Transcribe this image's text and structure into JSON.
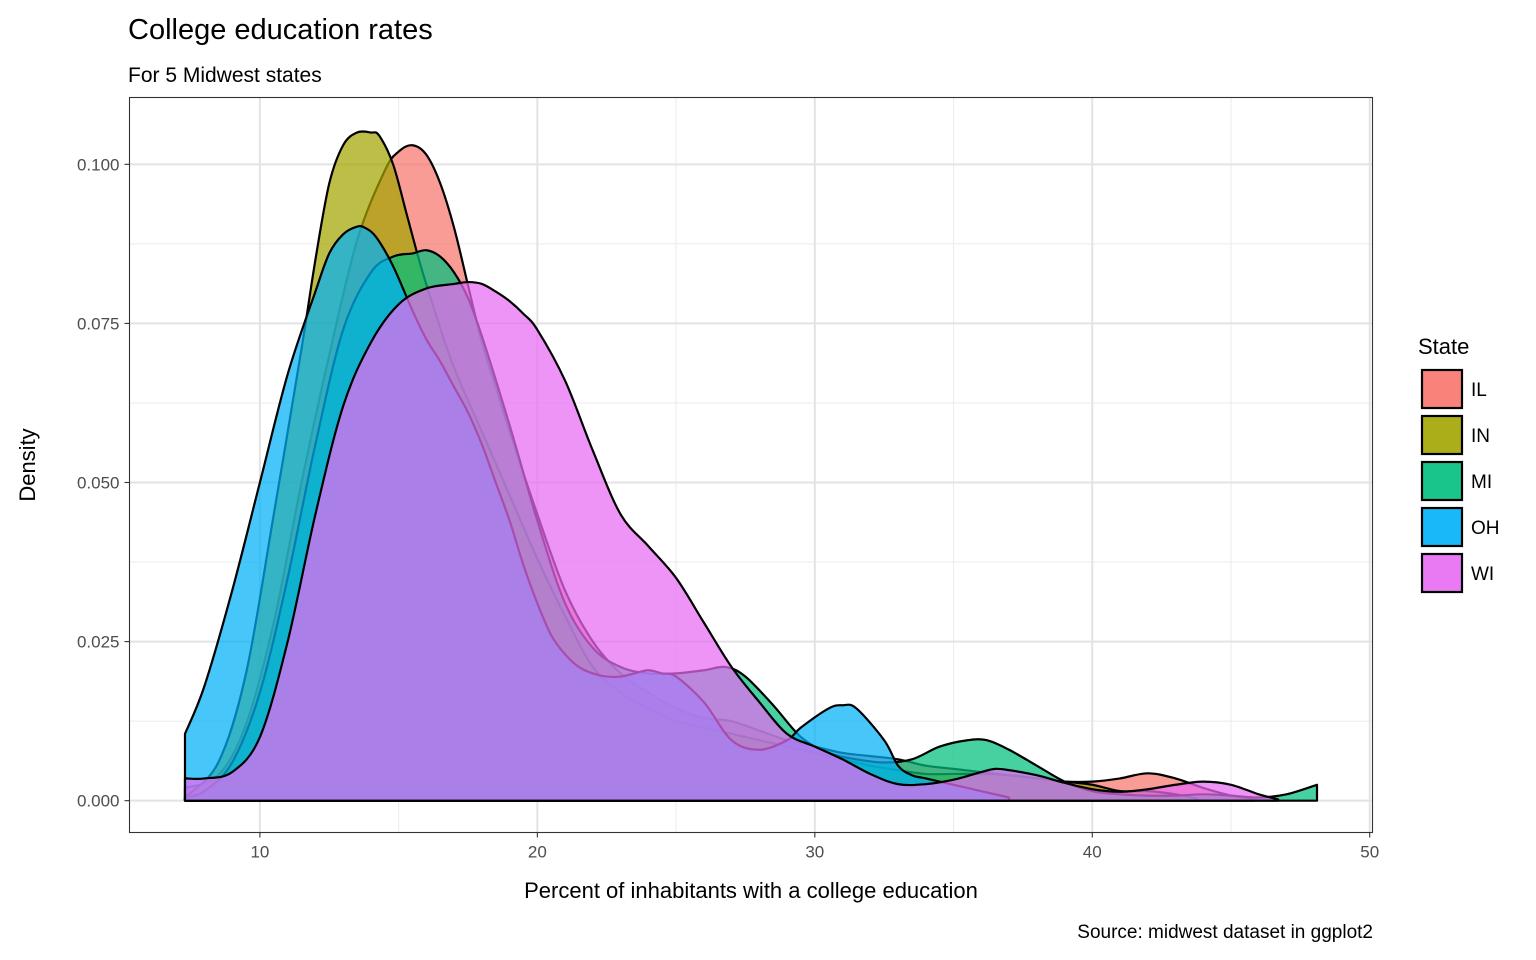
{
  "chart_data": {
    "type": "area",
    "title": "College education rates",
    "subtitle": "For 5 Midwest states",
    "xlabel": "Percent of inhabitants with a college education",
    "ylabel": "Density",
    "caption": "Source: midwest dataset in ggplot2",
    "xlim": [
      5.3,
      50.1
    ],
    "ylim": [
      -0.005,
      0.1105
    ],
    "xticks": [
      10,
      20,
      30,
      40,
      50
    ],
    "xtick_labels": [
      "10",
      "20",
      "30",
      "40",
      "50"
    ],
    "yticks": [
      0,
      0.025,
      0.05,
      0.075,
      0.1
    ],
    "ytick_labels": [
      "0.000",
      "0.025",
      "0.050",
      "0.075",
      "0.100"
    ],
    "grid": true,
    "legend": {
      "title": "State",
      "position": "right"
    },
    "series": [
      {
        "name": "IL",
        "color": "#F8766D",
        "x": [
          7.3,
          8.5,
          9.5,
          10.5,
          11.5,
          12.5,
          13.5,
          14.5,
          15.0,
          15.5,
          16.0,
          16.5,
          17.0,
          17.5,
          18.0,
          18.5,
          19.0,
          20.0,
          21.0,
          22.0,
          23.0,
          24.0,
          25.0,
          26.0,
          27.0,
          28.0,
          29.0,
          30.0,
          31.0,
          32.0,
          33.0,
          34.0,
          35.0,
          36.0,
          37.0,
          38.0,
          39.0,
          40.0,
          41.0,
          42.0,
          43.0,
          44.0,
          45.0,
          45.8
        ],
        "y": [
          0.002,
          0.004,
          0.012,
          0.028,
          0.05,
          0.07,
          0.088,
          0.099,
          0.102,
          0.103,
          0.1015,
          0.097,
          0.09,
          0.081,
          0.072,
          0.065,
          0.058,
          0.045,
          0.033,
          0.025,
          0.02,
          0.017,
          0.0145,
          0.013,
          0.0125,
          0.011,
          0.0095,
          0.0085,
          0.0075,
          0.007,
          0.0065,
          0.0055,
          0.005,
          0.0045,
          0.004,
          0.0035,
          0.003,
          0.003,
          0.0035,
          0.0043,
          0.0035,
          0.002,
          0.0008,
          0.0003
        ]
      },
      {
        "name": "IN",
        "color": "#A3A500",
        "x": [
          7.3,
          8.5,
          9.5,
          10.5,
          11.5,
          12.0,
          12.5,
          13.0,
          13.5,
          14.0,
          14.3,
          14.8,
          15.3,
          15.8,
          16.3,
          17.0,
          18.0,
          19.0,
          20.0,
          21.0,
          22.0,
          23.0,
          24.0,
          25.0,
          26.0,
          27.0,
          28.0,
          29.0,
          30.0,
          31.0,
          32.0,
          33.0,
          34.0,
          35.0,
          36.0,
          37.0,
          38.0,
          39.0,
          40.0,
          41.0,
          42.0,
          43.0,
          43.8
        ],
        "y": [
          0.0005,
          0.006,
          0.02,
          0.045,
          0.071,
          0.085,
          0.097,
          0.103,
          0.105,
          0.105,
          0.1045,
          0.1,
          0.092,
          0.084,
          0.077,
          0.068,
          0.058,
          0.048,
          0.038,
          0.029,
          0.021,
          0.017,
          0.0145,
          0.0125,
          0.0115,
          0.0105,
          0.0095,
          0.0085,
          0.0075,
          0.0065,
          0.0055,
          0.0048,
          0.0042,
          0.0042,
          0.0042,
          0.004,
          0.0035,
          0.003,
          0.0025,
          0.0015,
          0.0015,
          0.001,
          0.0003
        ]
      },
      {
        "name": "MI",
        "color": "#00BF7D",
        "x": [
          7.3,
          8.0,
          9.0,
          10.0,
          11.0,
          12.0,
          13.0,
          14.0,
          14.8,
          15.5,
          16.0,
          16.5,
          17.0,
          17.5,
          18.0,
          19.0,
          20.0,
          21.0,
          22.0,
          23.0,
          24.0,
          25.0,
          26.0,
          26.8,
          27.5,
          28.5,
          29.5,
          30.5,
          31.5,
          32.5,
          33.5,
          34.5,
          35.5,
          36.2,
          37.0,
          38.0,
          39.0,
          40.0,
          41.0,
          42.0,
          43.0,
          44.0,
          45.0,
          46.0,
          47.0,
          48.1
        ],
        "y": [
          0.0005,
          0.0015,
          0.006,
          0.017,
          0.035,
          0.056,
          0.074,
          0.083,
          0.0855,
          0.086,
          0.0865,
          0.0855,
          0.083,
          0.079,
          0.073,
          0.059,
          0.044,
          0.031,
          0.024,
          0.021,
          0.02,
          0.02,
          0.0205,
          0.021,
          0.0195,
          0.015,
          0.01,
          0.0075,
          0.0065,
          0.006,
          0.0065,
          0.0085,
          0.0095,
          0.0095,
          0.008,
          0.0055,
          0.003,
          0.0015,
          0.001,
          0.0008,
          0.0008,
          0.001,
          0.0008,
          0.0005,
          0.001,
          0.0025
        ]
      },
      {
        "name": "OH",
        "color": "#00B0F6",
        "x": [
          7.3,
          8.0,
          9.0,
          10.0,
          11.0,
          12.0,
          12.5,
          13.0,
          13.5,
          13.8,
          14.2,
          14.8,
          15.5,
          16.0,
          16.5,
          17.0,
          17.5,
          18.0,
          18.5,
          19.0,
          19.5,
          20.0,
          20.5,
          21.0,
          21.5,
          22.0,
          22.5,
          23.0,
          23.5,
          24.0,
          24.5,
          25.0,
          26.0,
          27.0,
          28.0,
          29.0,
          29.5,
          30.5,
          31.0,
          31.5,
          32.5,
          33.0,
          33.5,
          34.0,
          35.0,
          36.0,
          37.0
        ],
        "y": [
          0.0105,
          0.018,
          0.033,
          0.05,
          0.067,
          0.08,
          0.086,
          0.089,
          0.0902,
          0.09,
          0.0885,
          0.084,
          0.077,
          0.0725,
          0.069,
          0.065,
          0.061,
          0.056,
          0.05,
          0.044,
          0.037,
          0.031,
          0.026,
          0.023,
          0.021,
          0.02,
          0.0195,
          0.0195,
          0.02,
          0.0205,
          0.02,
          0.0195,
          0.0155,
          0.0095,
          0.008,
          0.0095,
          0.0115,
          0.0145,
          0.015,
          0.0145,
          0.0095,
          0.0055,
          0.004,
          0.0035,
          0.0025,
          0.0015,
          0.0005
        ]
      },
      {
        "name": "WI",
        "color": "#E76BF3",
        "x": [
          7.3,
          8.0,
          9.0,
          10.0,
          11.0,
          12.0,
          13.0,
          14.0,
          15.0,
          16.0,
          17.0,
          17.5,
          18.0,
          18.5,
          19.0,
          19.5,
          20.0,
          21.0,
          22.0,
          23.0,
          24.0,
          25.0,
          26.0,
          27.0,
          28.0,
          29.0,
          30.0,
          31.0,
          32.0,
          33.0,
          34.0,
          35.0,
          36.0,
          36.5,
          37.0,
          38.0,
          39.0,
          40.0,
          41.0,
          42.0,
          43.0,
          44.0,
          45.0,
          46.0,
          46.7
        ],
        "y": [
          0.0035,
          0.0035,
          0.0045,
          0.01,
          0.025,
          0.045,
          0.062,
          0.072,
          0.078,
          0.0805,
          0.0812,
          0.0815,
          0.0812,
          0.08,
          0.0785,
          0.0765,
          0.074,
          0.066,
          0.055,
          0.045,
          0.04,
          0.035,
          0.028,
          0.021,
          0.0155,
          0.0105,
          0.0085,
          0.0065,
          0.0042,
          0.0026,
          0.0026,
          0.0033,
          0.0045,
          0.005,
          0.0048,
          0.004,
          0.0028,
          0.0018,
          0.0014,
          0.0018,
          0.0025,
          0.003,
          0.0025,
          0.001,
          0.0002
        ]
      }
    ]
  }
}
